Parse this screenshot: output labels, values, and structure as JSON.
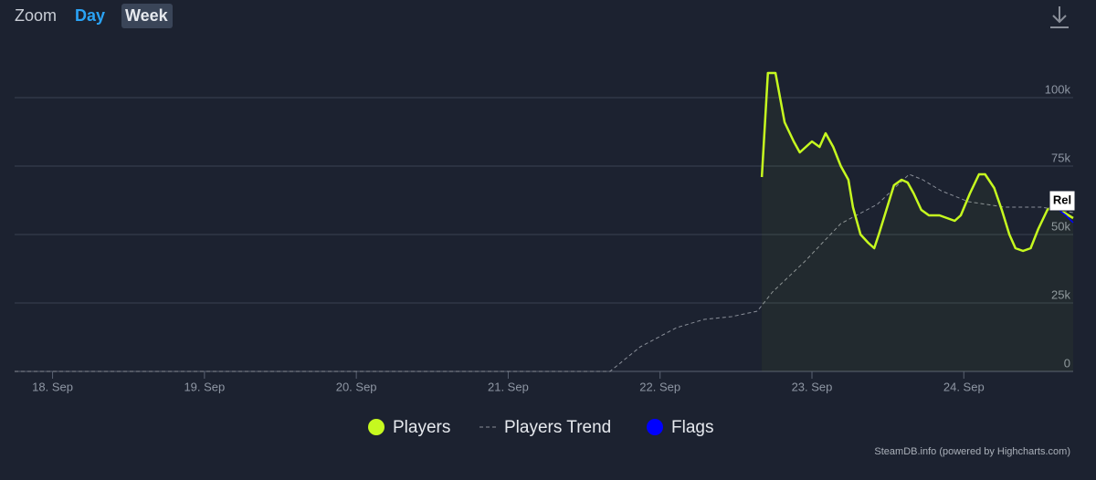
{
  "zoom": {
    "label": "Zoom",
    "buttons": [
      "Day",
      "Week"
    ]
  },
  "chart_data": {
    "type": "line",
    "xlim": [
      17.75,
      24.72
    ],
    "xticks": [
      {
        "value": 18,
        "label": "18. Sep"
      },
      {
        "value": 19,
        "label": "19. Sep"
      },
      {
        "value": 20,
        "label": "20. Sep"
      },
      {
        "value": 21,
        "label": "21. Sep"
      },
      {
        "value": 22,
        "label": "22. Sep"
      },
      {
        "value": 23,
        "label": "23. Sep"
      },
      {
        "value": 24,
        "label": "24. Sep"
      }
    ],
    "ylim": [
      0,
      120000
    ],
    "yticks": [
      0,
      {
        "value": 25000,
        "label": "25k"
      },
      {
        "value": 50000,
        "label": "50k"
      },
      {
        "value": 75000,
        "label": "75k"
      },
      {
        "value": 100000,
        "label": "100k"
      }
    ],
    "grid": true,
    "series": [
      {
        "name": "Players",
        "color": "#c6f91f",
        "x": [
          22.67,
          22.71,
          22.76,
          22.82,
          22.88,
          22.92,
          23.0,
          23.05,
          23.09,
          23.14,
          23.19,
          23.24,
          23.27,
          23.32,
          23.37,
          23.41,
          23.44,
          23.49,
          23.54,
          23.59,
          23.63,
          23.67,
          23.72,
          23.77,
          23.84,
          23.89,
          23.94,
          23.98,
          24.04,
          24.1,
          24.14,
          24.2,
          24.25,
          24.3,
          24.34,
          24.39,
          24.44,
          24.49,
          24.55,
          24.6,
          24.66,
          24.72
        ],
        "values": [
          71000,
          109000,
          109000,
          91000,
          84000,
          80000,
          84000,
          82000,
          87000,
          82000,
          75000,
          70000,
          60000,
          50000,
          47000,
          45000,
          50000,
          59000,
          68000,
          70000,
          69000,
          65000,
          59000,
          57000,
          57000,
          56000,
          55000,
          57000,
          65000,
          72000,
          72000,
          67000,
          59000,
          50000,
          45000,
          44000,
          45000,
          52000,
          59000,
          61000,
          58000,
          56000
        ]
      },
      {
        "name": "Players Trend",
        "color": "#8a8f99",
        "dashed": true,
        "x": [
          17.75,
          21.67,
          21.87,
          22.11,
          22.29,
          22.47,
          22.64,
          22.74,
          22.95,
          23.19,
          23.43,
          23.64,
          23.73,
          23.85,
          24.03,
          24.27,
          24.51,
          24.72
        ],
        "values": [
          0,
          0,
          9000,
          16000,
          19000,
          20000,
          22000,
          29000,
          40000,
          54000,
          61000,
          72000,
          70000,
          66000,
          62000,
          60000,
          60000,
          58000
        ]
      },
      {
        "name": "Flags",
        "color": "#0000ff"
      }
    ],
    "annotations": [
      {
        "text": "Rel",
        "x": 24.66
      }
    ],
    "credits": "SteamDB.info (powered by Highcharts.com)"
  }
}
